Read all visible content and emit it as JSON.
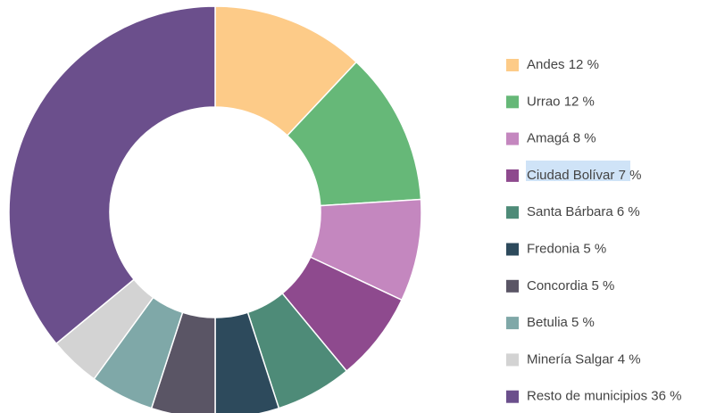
{
  "chart_data": {
    "type": "donut",
    "categories": [
      "Andes",
      "Urrao",
      "Amagá",
      "Ciudad Bolívar",
      "Santa Bárbara",
      "Fredonia",
      "Concordia",
      "Betulia",
      "Minería Salgar",
      "Resto de municipios"
    ],
    "values": [
      12,
      12,
      8,
      7,
      6,
      5,
      5,
      5,
      4,
      36
    ],
    "value_labels": [
      "12 %",
      "12 %",
      "8 %",
      "7 %",
      "6 %",
      "5 %",
      "5 %",
      "5 %",
      "4 %",
      "36 %"
    ],
    "colors": [
      "#fdcb88",
      "#66b878",
      "#c487bf",
      "#8e4a8e",
      "#4e8b78",
      "#2d4a5c",
      "#5a5565",
      "#7fa8a8",
      "#d3d3d3",
      "#6b4f8c"
    ],
    "legend": "right"
  }
}
